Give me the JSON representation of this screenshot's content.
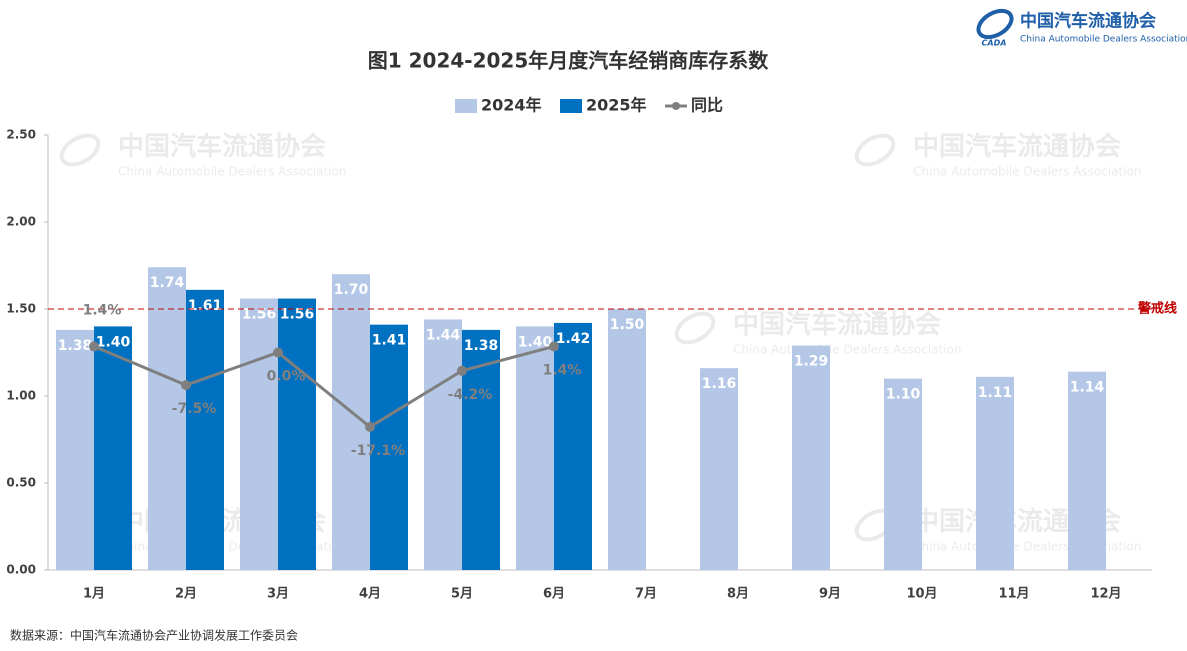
{
  "chart_data": {
    "type": "bar",
    "title": "图1  2024-2025年月度汽车经销商库存系数",
    "logo": {
      "name": "中国汽车流通协会",
      "subtitle": "China Automobile Dealers Association",
      "mark": "CADA"
    },
    "categories": [
      "1月",
      "2月",
      "3月",
      "4月",
      "5月",
      "6月",
      "7月",
      "8月",
      "9月",
      "10月",
      "11月",
      "12月"
    ],
    "series": [
      {
        "name": "2024年",
        "type": "bar",
        "color": "#b4c7e7",
        "values": [
          1.38,
          1.74,
          1.56,
          1.7,
          1.44,
          1.4,
          1.5,
          1.16,
          1.29,
          1.1,
          1.11,
          1.14
        ],
        "value_labels": [
          "1.38",
          "1.74",
          "1.56",
          "1.70",
          "1.44",
          "1.40",
          "1.50",
          "1.16",
          "1.29",
          "1.10",
          "1.11",
          "1.14"
        ]
      },
      {
        "name": "2025年",
        "type": "bar",
        "color": "#0070c0",
        "values": [
          1.4,
          1.61,
          1.56,
          1.41,
          1.38,
          1.42,
          null,
          null,
          null,
          null,
          null,
          null
        ],
        "value_labels": [
          "1.40",
          "1.61",
          "1.56",
          "1.41",
          "1.38",
          "1.42",
          null,
          null,
          null,
          null,
          null,
          null
        ]
      },
      {
        "name": "同比",
        "type": "line",
        "axis": "y2",
        "color": "#7f7f7f",
        "values": [
          1.4,
          -7.5,
          0,
          -17.1,
          -4.2,
          1.4,
          null,
          null,
          null,
          null,
          null,
          null
        ],
        "value_labels": [
          "1.4%",
          "-7.5%",
          "0.0%",
          "-17.1%",
          "-4.2%",
          "1.4%",
          null,
          null,
          null,
          null,
          null,
          null
        ]
      }
    ],
    "ylim": [
      0,
      2.5
    ],
    "yticks": [
      {
        "value": 0,
        "label": "0.00"
      },
      {
        "value": 0.5,
        "label": "0.50"
      },
      {
        "value": 1,
        "label": "1.00"
      },
      {
        "value": 1.5,
        "label": "1.50"
      },
      {
        "value": 2,
        "label": "2.00"
      },
      {
        "value": 2.5,
        "label": "2.50"
      }
    ],
    "y2lim": [
      -50,
      50
    ],
    "reference_line": {
      "value": 1.5,
      "label": "警戒线",
      "color": "#c00000"
    },
    "legend": "top",
    "source": "数据来源：中国汽车流通协会产业协调发展工作委员会"
  }
}
